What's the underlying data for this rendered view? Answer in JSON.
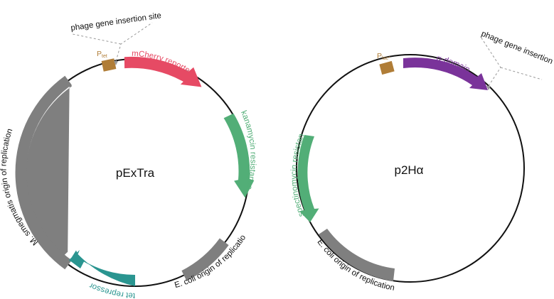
{
  "plasmids": [
    {
      "name": "pExTra",
      "promoter": {
        "main": "P",
        "sub": "tet"
      },
      "features": [
        {
          "label": "mCherry reporter",
          "color": "#e64a64"
        },
        {
          "label": "kanamycin resistance gene",
          "color": "#52ae77"
        },
        {
          "label": "E. coli origin of replication",
          "color": "#7f7f7f"
        },
        {
          "label": "tet repressor",
          "color": "#2a9590"
        },
        {
          "label": "M. smegmatis origin of replication",
          "color": "#7f7f7f"
        }
      ],
      "insertion_site": "phage gene insertion site"
    },
    {
      "name": "p2Hα",
      "promoter": {
        "main": "P",
        "sub": "lac*"
      },
      "features": [
        {
          "label": "α-domain",
          "color": "#7a339a"
        },
        {
          "label": "spectinomycin resistance",
          "color": "#52ae77"
        },
        {
          "label": "E. coli origin of replication",
          "color": "#7f7f7f"
        }
      ],
      "insertion_site": "phage gene insertion site"
    }
  ],
  "colors": {
    "backbone": "#111111",
    "promoter_box": "#b07d37",
    "promoter_text": "#b07d37",
    "dashed_line": "#999999"
  }
}
